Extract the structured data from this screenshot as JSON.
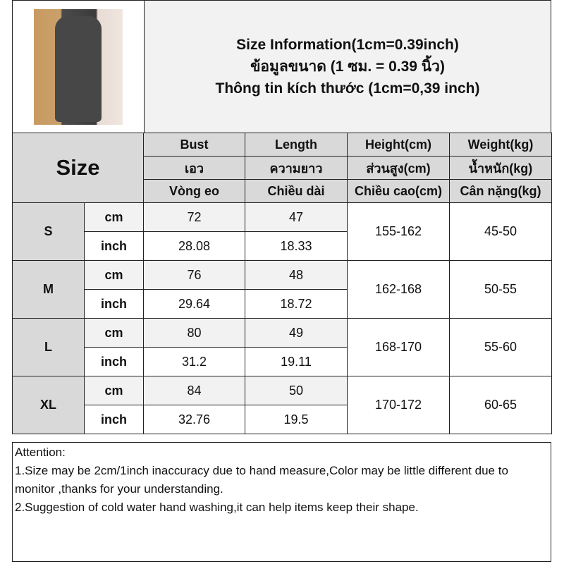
{
  "title": {
    "lines": [
      "Size Information(1cm=0.39inch)",
      "ข้อมูลขนาด (1 ซม. = 0.39 นิ้ว)",
      "Thông tin kích thước (1cm=0,39 inch)"
    ]
  },
  "photo": {
    "alt": "model wearing dark grey short-sleeve mini dress"
  },
  "header": {
    "size_label": "Size",
    "columns": [
      {
        "en": "Bust",
        "th": "เอว",
        "vi": "Vòng eo"
      },
      {
        "en": "Length",
        "th": "ความยาว",
        "vi": "Chiều dài"
      },
      {
        "en": "Height(cm)",
        "th": "ส่วนสูง(cm)",
        "vi": "Chiều cao(cm)"
      },
      {
        "en": "Weight(kg)",
        "th": "น้ำหนัก(kg)",
        "vi": "Cân nặng(kg)"
      }
    ]
  },
  "units": {
    "cm": "cm",
    "inch": "inch"
  },
  "rows": [
    {
      "size": "S",
      "cm": {
        "bust": "72",
        "length": "47"
      },
      "inch": {
        "bust": "28.08",
        "length": "18.33"
      },
      "height": "155-162",
      "weight": "45-50"
    },
    {
      "size": "M",
      "cm": {
        "bust": "76",
        "length": "48"
      },
      "inch": {
        "bust": "29.64",
        "length": "18.72"
      },
      "height": "162-168",
      "weight": "50-55"
    },
    {
      "size": "L",
      "cm": {
        "bust": "80",
        "length": "49"
      },
      "inch": {
        "bust": "31.2",
        "length": "19.11"
      },
      "height": "168-170",
      "weight": "55-60"
    },
    {
      "size": "XL",
      "cm": {
        "bust": "84",
        "length": "50"
      },
      "inch": {
        "bust": "32.76",
        "length": "19.5"
      },
      "height": "170-172",
      "weight": "60-65"
    }
  ],
  "attention": {
    "heading": "Attention:",
    "notes": [
      "1.Size may be 2cm/1inch inaccuracy due to hand measure,Color may be little different due to monitor ,thanks for your understanding.",
      "2.Suggestion of cold water hand washing,it can help items keep their shape."
    ]
  }
}
